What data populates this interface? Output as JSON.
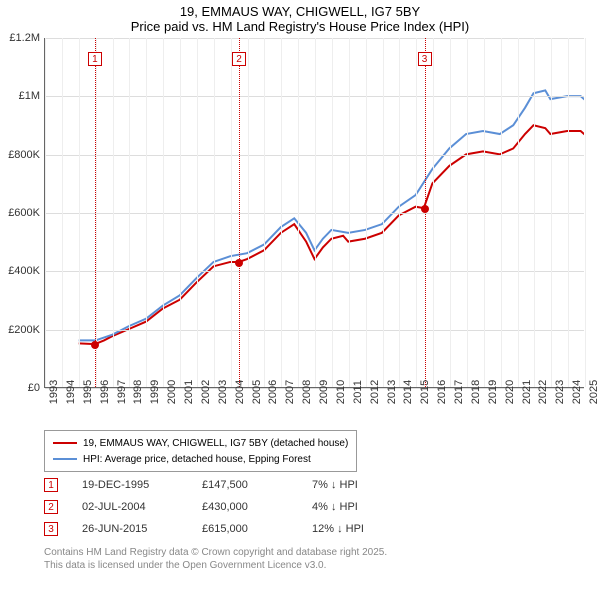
{
  "title": {
    "line1": "19, EMMAUS WAY, CHIGWELL, IG7 5BY",
    "line2": "Price paid vs. HM Land Registry's House Price Index (HPI)",
    "fontsize": 13
  },
  "chart": {
    "type": "line",
    "background_color": "#ffffff",
    "grid_color": "#dddddd",
    "x_years": [
      1993,
      1994,
      1995,
      1996,
      1997,
      1998,
      1999,
      2000,
      2001,
      2002,
      2003,
      2004,
      2005,
      2006,
      2007,
      2008,
      2009,
      2010,
      2011,
      2012,
      2013,
      2014,
      2015,
      2016,
      2017,
      2018,
      2019,
      2020,
      2021,
      2022,
      2023,
      2024,
      2025
    ],
    "ylim": [
      0,
      1200000
    ],
    "ytick_step": 200000,
    "ytick_labels": [
      "£0",
      "£200K",
      "£400K",
      "£600K",
      "£800K",
      "£1M",
      "£1.2M"
    ],
    "label_fontsize": 11,
    "series": [
      {
        "name": "19, EMMAUS WAY, CHIGWELL, IG7 5BY (detached house)",
        "color": "#cc0000",
        "line_width": 2,
        "points": [
          [
            1995.0,
            150000
          ],
          [
            1995.96,
            147500
          ],
          [
            1996.5,
            160000
          ],
          [
            1997,
            175000
          ],
          [
            1998,
            200000
          ],
          [
            1999,
            225000
          ],
          [
            2000,
            270000
          ],
          [
            2001,
            300000
          ],
          [
            2002,
            360000
          ],
          [
            2003,
            415000
          ],
          [
            2004,
            430000
          ],
          [
            2004.5,
            430000
          ],
          [
            2005,
            440000
          ],
          [
            2006,
            470000
          ],
          [
            2007,
            530000
          ],
          [
            2007.8,
            560000
          ],
          [
            2008.5,
            500000
          ],
          [
            2009,
            440000
          ],
          [
            2009.5,
            480000
          ],
          [
            2010,
            510000
          ],
          [
            2010.7,
            520000
          ],
          [
            2011,
            500000
          ],
          [
            2012,
            510000
          ],
          [
            2013,
            530000
          ],
          [
            2014,
            590000
          ],
          [
            2015,
            620000
          ],
          [
            2015.49,
            615000
          ],
          [
            2016,
            700000
          ],
          [
            2017,
            760000
          ],
          [
            2018,
            800000
          ],
          [
            2019,
            810000
          ],
          [
            2020,
            800000
          ],
          [
            2020.8,
            820000
          ],
          [
            2021.5,
            870000
          ],
          [
            2022,
            900000
          ],
          [
            2022.7,
            890000
          ],
          [
            2023,
            870000
          ],
          [
            2024,
            880000
          ],
          [
            2024.8,
            880000
          ],
          [
            2025.2,
            860000
          ]
        ]
      },
      {
        "name": "HPI: Average price, detached house, Epping Forest",
        "color": "#5b8fd6",
        "line_width": 2,
        "points": [
          [
            1995.0,
            160000
          ],
          [
            1996,
            160000
          ],
          [
            1997,
            180000
          ],
          [
            1998,
            210000
          ],
          [
            1999,
            235000
          ],
          [
            2000,
            280000
          ],
          [
            2001,
            315000
          ],
          [
            2002,
            375000
          ],
          [
            2003,
            430000
          ],
          [
            2004,
            450000
          ],
          [
            2005,
            460000
          ],
          [
            2006,
            490000
          ],
          [
            2007,
            550000
          ],
          [
            2007.8,
            580000
          ],
          [
            2008.5,
            530000
          ],
          [
            2009,
            470000
          ],
          [
            2009.5,
            510000
          ],
          [
            2010,
            540000
          ],
          [
            2011,
            530000
          ],
          [
            2012,
            540000
          ],
          [
            2013,
            560000
          ],
          [
            2014,
            620000
          ],
          [
            2015,
            660000
          ],
          [
            2016,
            750000
          ],
          [
            2017,
            820000
          ],
          [
            2018,
            870000
          ],
          [
            2019,
            880000
          ],
          [
            2020,
            870000
          ],
          [
            2020.8,
            900000
          ],
          [
            2021.5,
            960000
          ],
          [
            2022,
            1010000
          ],
          [
            2022.7,
            1020000
          ],
          [
            2023,
            990000
          ],
          [
            2024,
            1000000
          ],
          [
            2024.8,
            1000000
          ],
          [
            2025.2,
            980000
          ]
        ]
      }
    ],
    "markers": [
      {
        "idx": "1",
        "x": 1995.96,
        "y": 147500,
        "color": "#cc0000"
      },
      {
        "idx": "2",
        "x": 2004.5,
        "y": 430000,
        "color": "#cc0000"
      },
      {
        "idx": "3",
        "x": 2015.49,
        "y": 615000,
        "color": "#cc0000"
      }
    ]
  },
  "legend": {
    "items": [
      {
        "color": "#cc0000",
        "label": "19, EMMAUS WAY, CHIGWELL, IG7 5BY (detached house)"
      },
      {
        "color": "#5b8fd6",
        "label": "HPI: Average price, detached house, Epping Forest"
      }
    ]
  },
  "transactions": [
    {
      "idx": "1",
      "date": "19-DEC-1995",
      "price": "£147,500",
      "delta": "7% ↓ HPI"
    },
    {
      "idx": "2",
      "date": "02-JUL-2004",
      "price": "£430,000",
      "delta": "4% ↓ HPI"
    },
    {
      "idx": "3",
      "date": "26-JUN-2015",
      "price": "£615,000",
      "delta": "12% ↓ HPI"
    }
  ],
  "footer": {
    "line1": "Contains HM Land Registry data © Crown copyright and database right 2025.",
    "line2": "This data is licensed under the Open Government Licence v3.0."
  }
}
